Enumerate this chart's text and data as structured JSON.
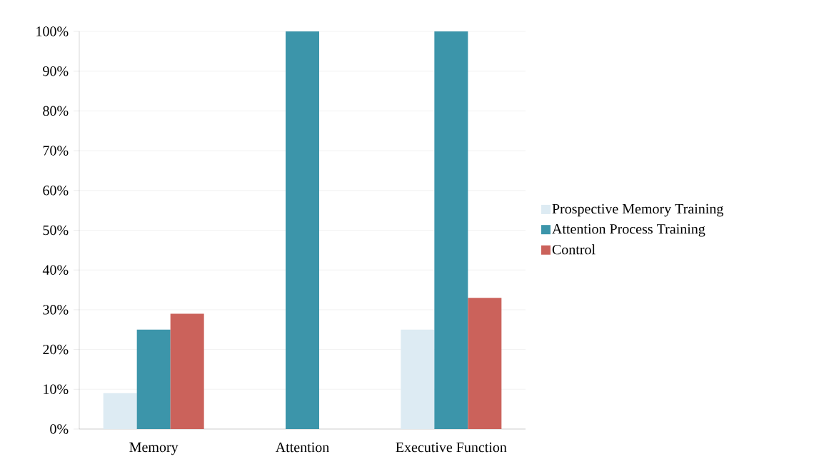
{
  "chart_data": {
    "type": "bar",
    "categories": [
      "Memory",
      "Attention",
      "Executive Function"
    ],
    "series": [
      {
        "name": "Prospective Memory Training",
        "color": "#ddebf3",
        "values": [
          9,
          0,
          25
        ]
      },
      {
        "name": "Attention Process Training",
        "color": "#3c95aa",
        "values": [
          25,
          100,
          100
        ]
      },
      {
        "name": "Control",
        "color": "#cb625b",
        "values": [
          29,
          0,
          33
        ]
      }
    ],
    "ylim": [
      0,
      100
    ],
    "yticks": [
      {
        "value": 0,
        "label": "0%"
      },
      {
        "value": 10,
        "label": "10%"
      },
      {
        "value": 20,
        "label": "20%"
      },
      {
        "value": 30,
        "label": "30%"
      },
      {
        "value": 40,
        "label": "40%"
      },
      {
        "value": 50,
        "label": "50%"
      },
      {
        "value": 60,
        "label": "60%"
      },
      {
        "value": 70,
        "label": "70%"
      },
      {
        "value": 80,
        "label": "80%"
      },
      {
        "value": 90,
        "label": "90%"
      },
      {
        "value": 100,
        "label": "100%"
      }
    ],
    "grid": "y",
    "legend": "right"
  }
}
